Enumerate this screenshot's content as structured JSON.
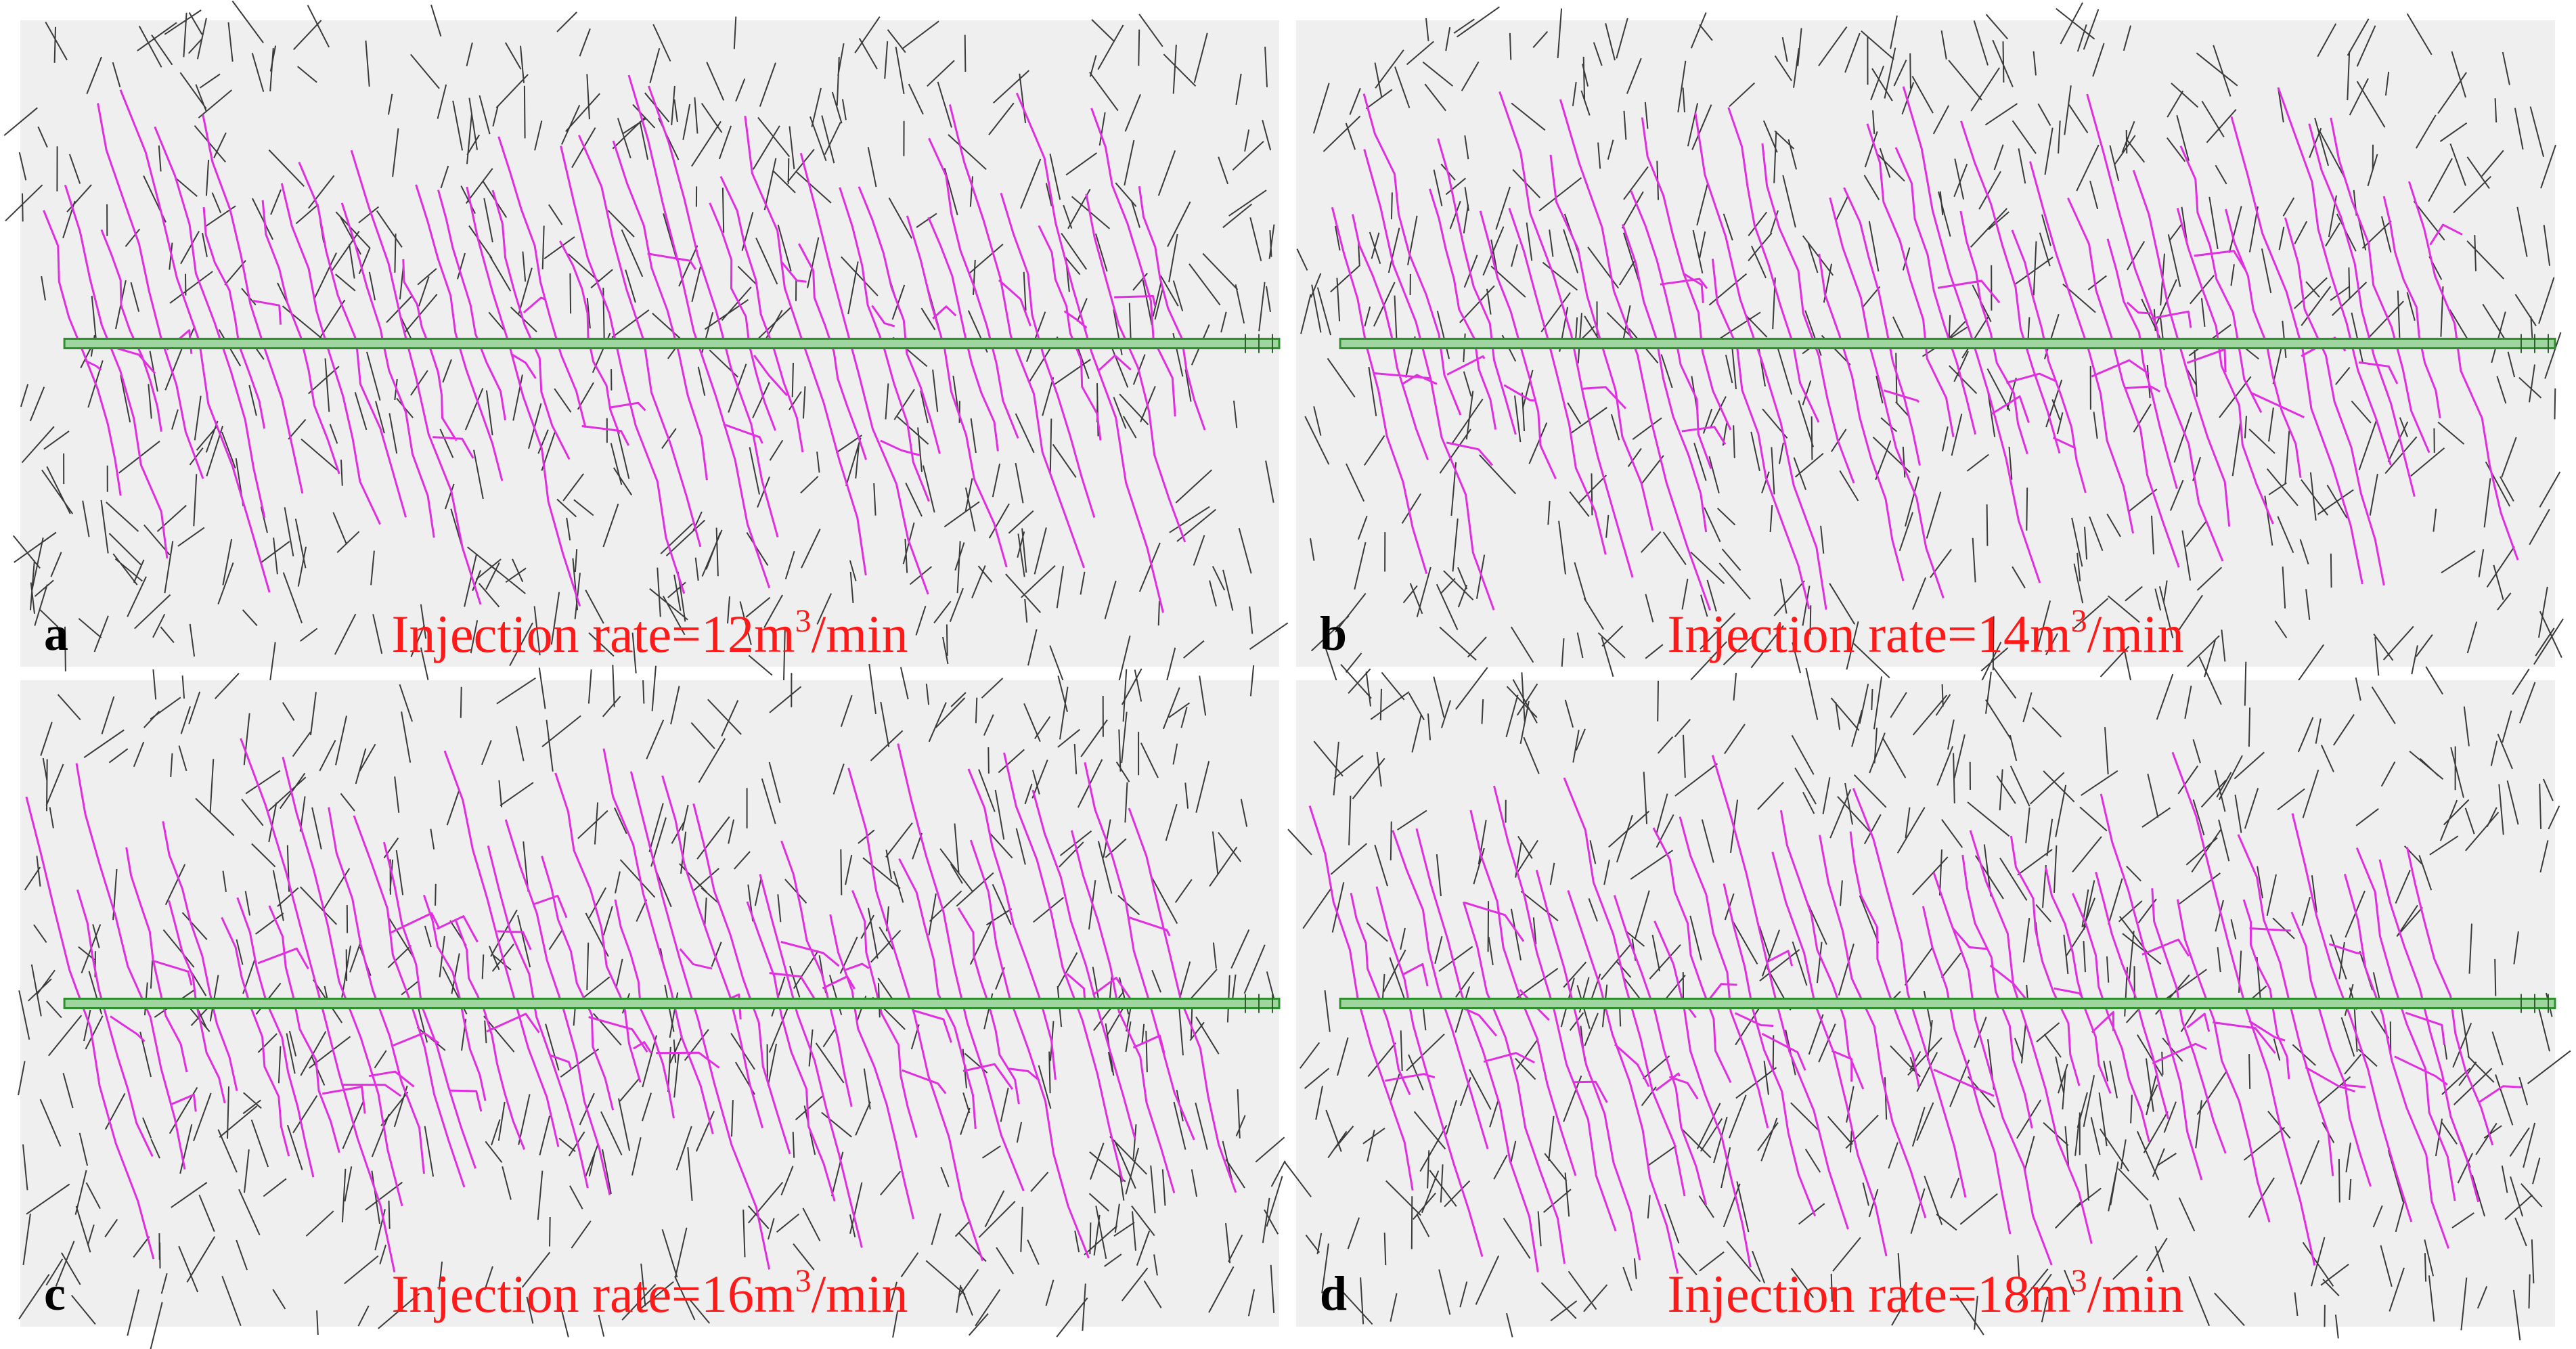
{
  "panels": [
    {
      "label": "a",
      "caption": {
        "before": "Injection rate=12m",
        "sup": "3",
        "after": "/min"
      }
    },
    {
      "label": "b",
      "caption": {
        "before": "Injection rate=14m",
        "sup": "3",
        "after": "/min"
      }
    },
    {
      "label": "c",
      "caption": {
        "before": "Injection rate=16m",
        "sup": "3",
        "after": "/min"
      }
    },
    {
      "label": "d",
      "caption": {
        "before": "Injection rate=18m",
        "sup": "3",
        "after": "/min"
      }
    }
  ]
}
